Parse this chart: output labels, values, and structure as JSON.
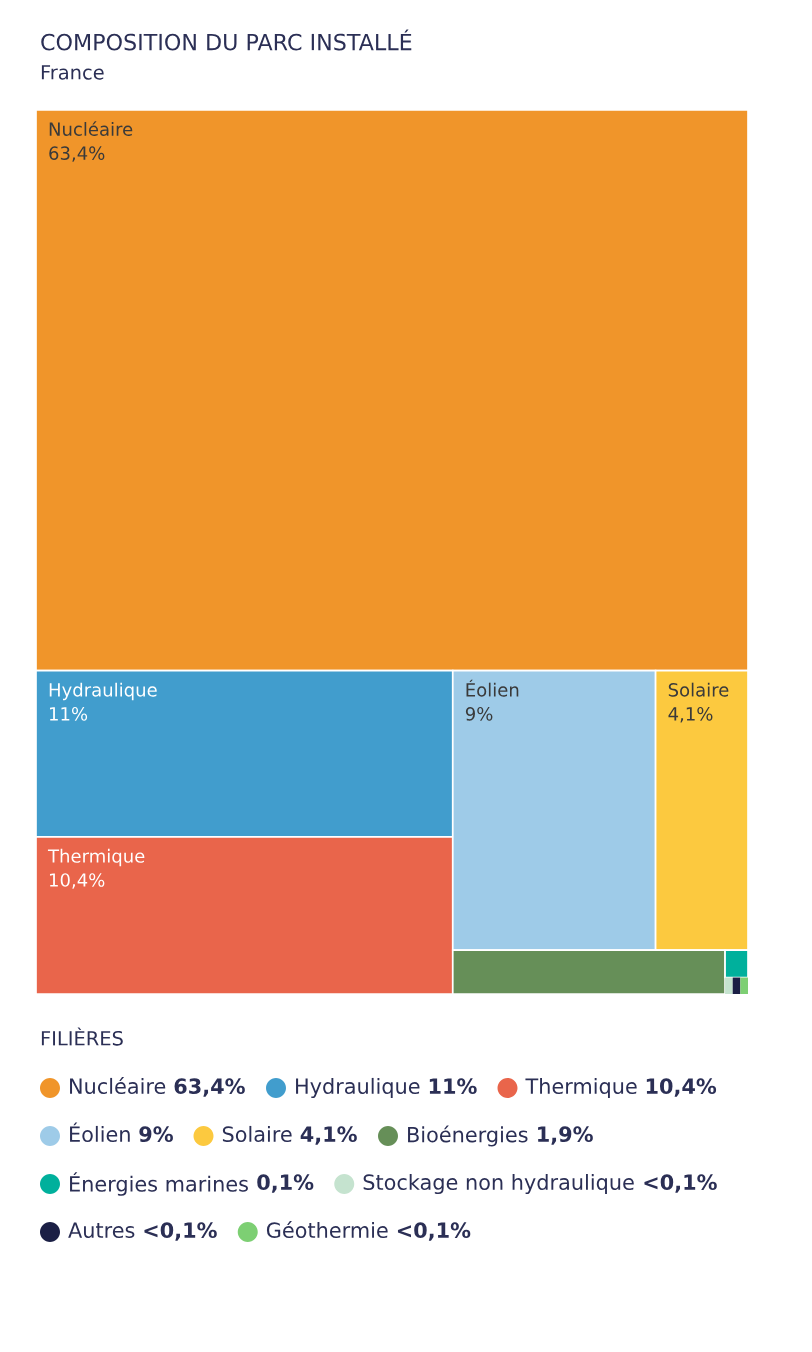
{
  "chart_data": {
    "type": "other",
    "title": "COMPOSITION DU PARC INSTALLÉ",
    "subtitle": "France",
    "legend_title": "FILIÈRES",
    "categories": [
      "Nucléaire",
      "Hydraulique",
      "Thermique",
      "Éolien",
      "Solaire",
      "Bioénergies",
      "Énergies marines",
      "Stockage non hydraulique",
      "Autres",
      "Géothermie"
    ],
    "values": [
      63.4,
      11,
      10.4,
      9,
      4.1,
      1.9,
      0.1,
      null,
      null,
      null
    ],
    "value_labels": [
      "63,4%",
      "11%",
      "10,4%",
      "9%",
      "4,1%",
      "1,9%",
      "0,1%",
      "<0,1%",
      "<0,1%",
      "<0,1%"
    ],
    "colors": [
      "#f0952a",
      "#419dcd",
      "#e9654b",
      "#9ecbe8",
      "#fcc93f",
      "#668f58",
      "#00b09c",
      "#c5e3cf",
      "#1b1f45",
      "#7dcf73"
    ]
  }
}
